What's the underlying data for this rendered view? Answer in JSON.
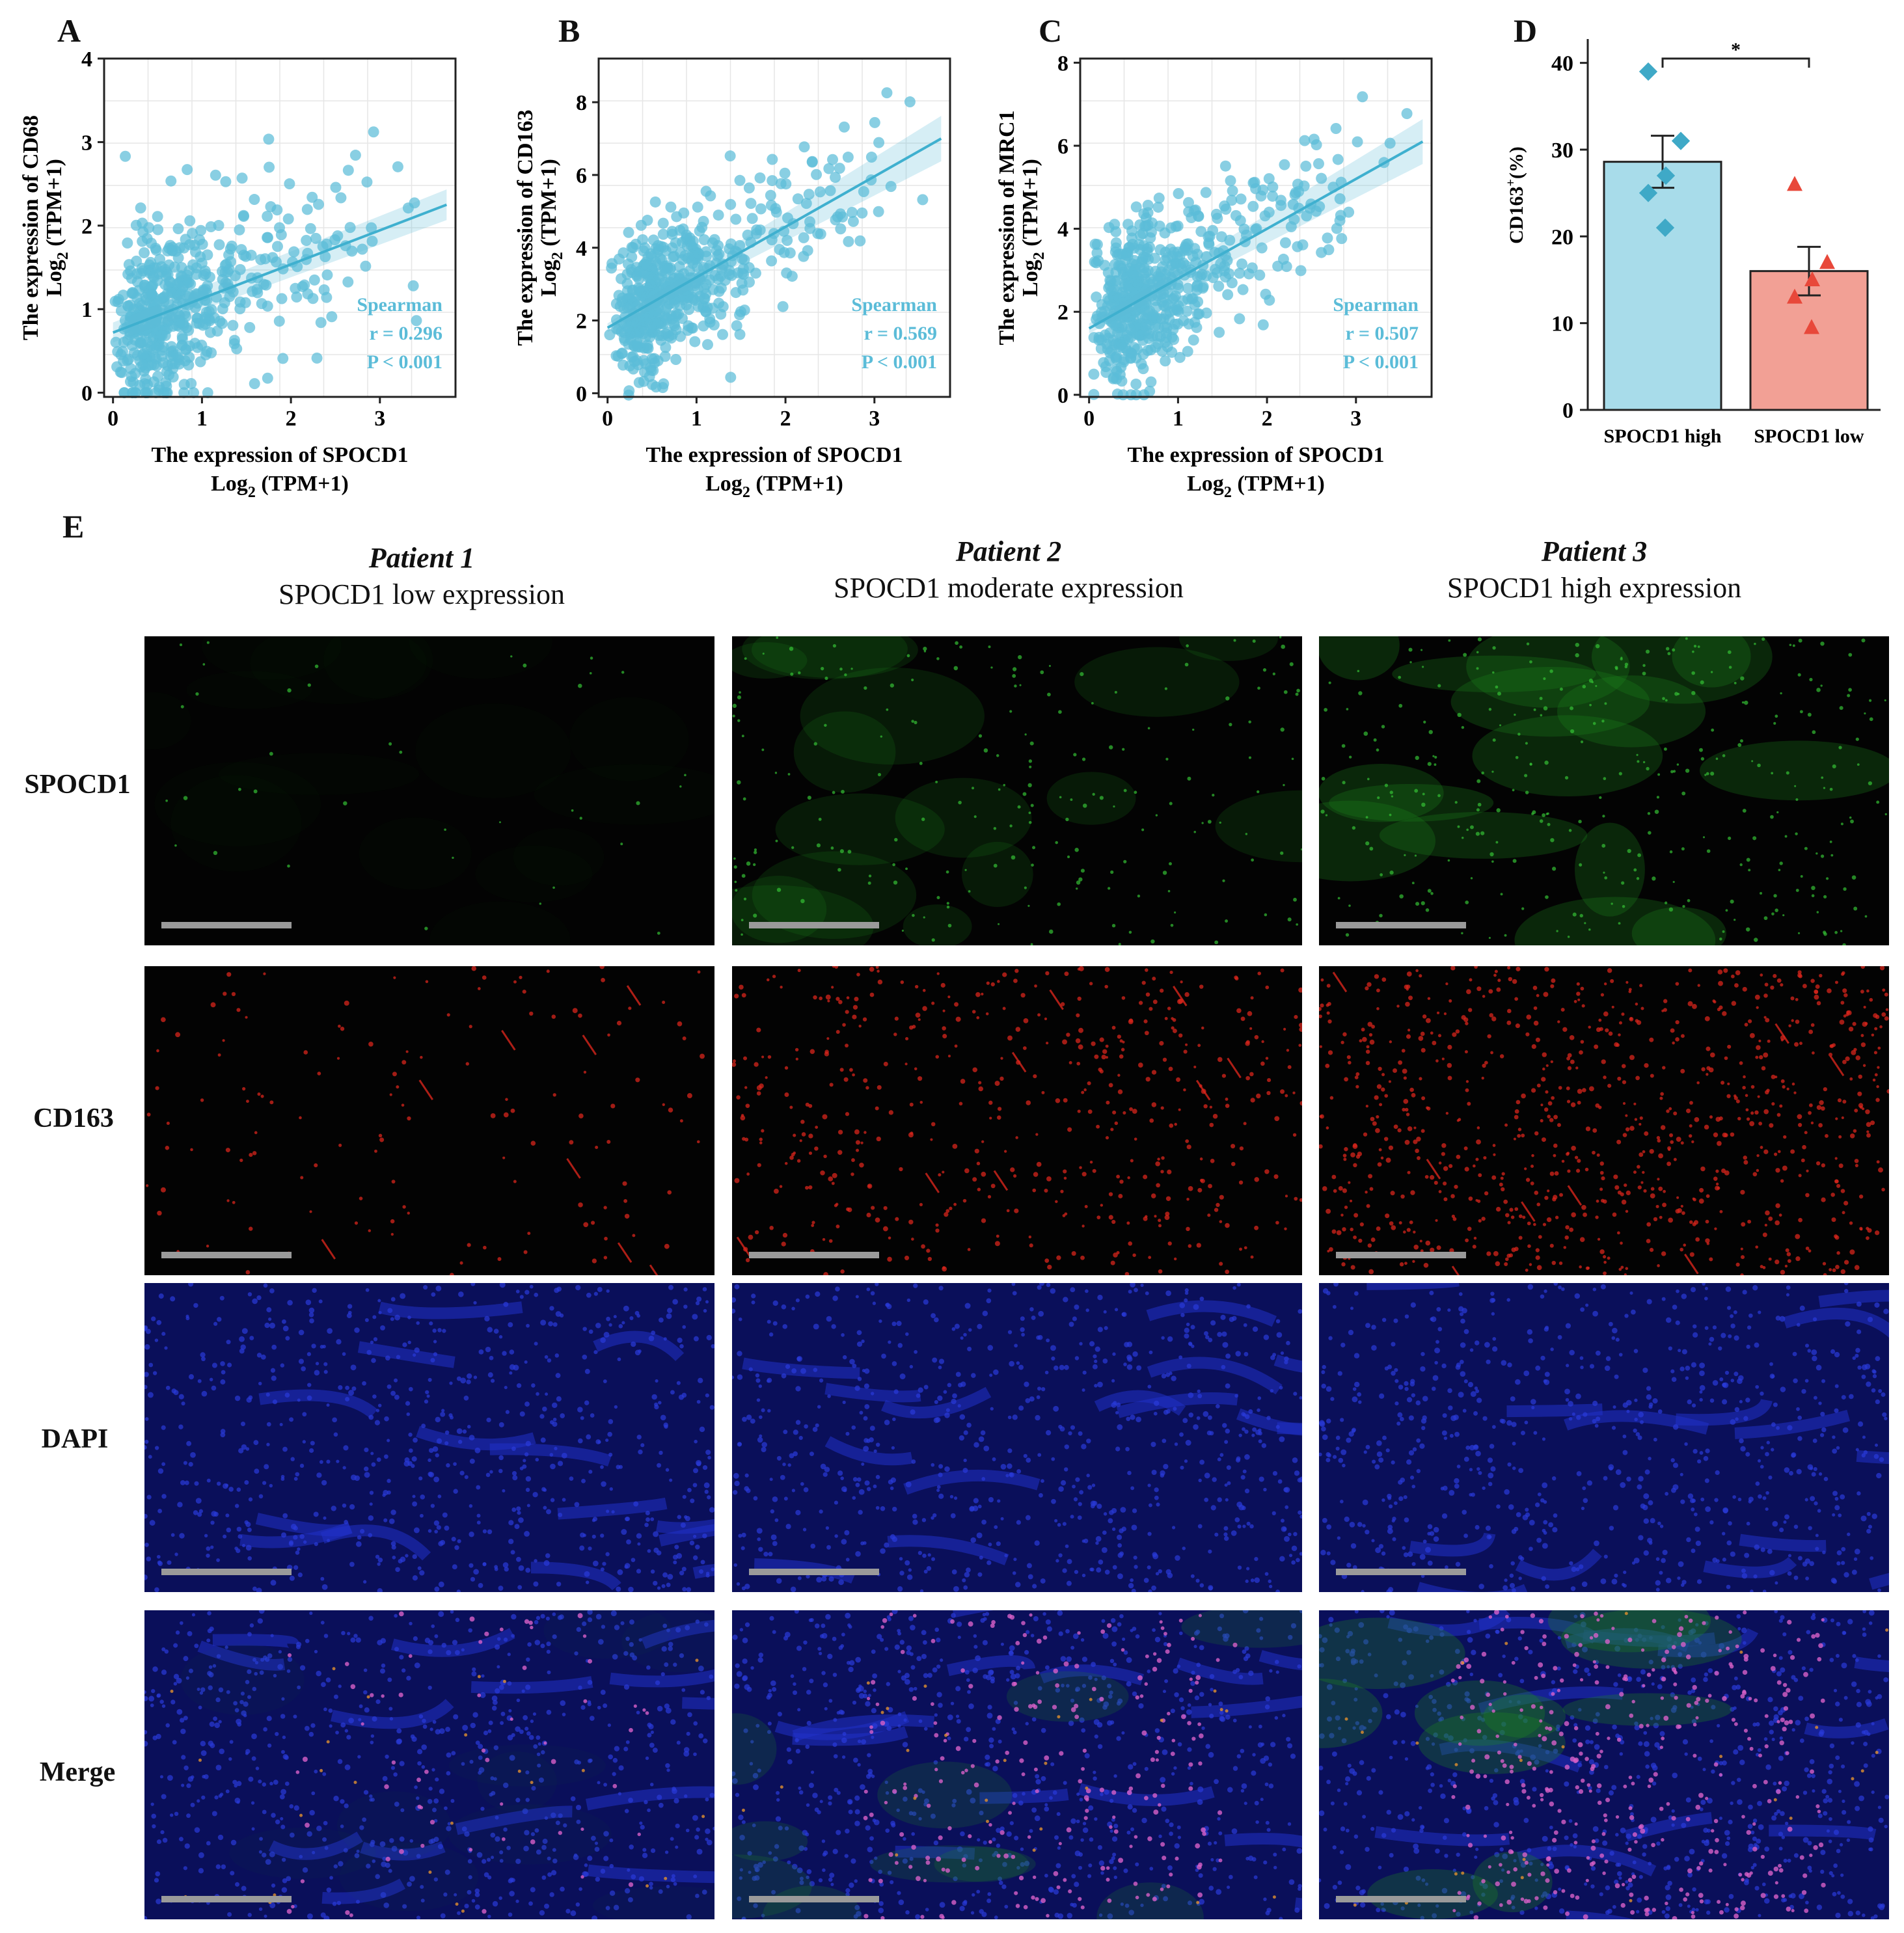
{
  "panels": {
    "a": "A",
    "b": "B",
    "c": "C",
    "d": "D",
    "e": "E"
  },
  "chart_data": [
    {
      "id": "A",
      "type": "scatter",
      "xlabel": "The expression of SPOCD1",
      "xlabel_sub": "Log",
      "xlabel_unit": "2",
      "xlabel_tail": "(TPM+1)",
      "ylabel": "The expression of CD68",
      "ylabel_sub": "Log",
      "ylabel_unit": "2",
      "ylabel_tail": "(TPM+1)",
      "xlim": [
        -0.1,
        3.85
      ],
      "ylim": [
        -0.05,
        4.0
      ],
      "xticks": [
        0,
        1,
        2,
        3
      ],
      "yticks": [
        0,
        1,
        2,
        3,
        4
      ],
      "fit": {
        "x0": 0,
        "y0": 0.72,
        "x1": 3.75,
        "y1": 2.25
      },
      "stat_method": "Spearman",
      "stat_r": "r = 0.296",
      "stat_p": "P < 0.001",
      "seed": 11,
      "npoints": 520,
      "slope": 0.41,
      "intercept": 0.72,
      "noise": 0.55,
      "color": "#5bbcd8"
    },
    {
      "id": "B",
      "type": "scatter",
      "xlabel": "The expression of SPOCD1",
      "xlabel_sub": "Log",
      "xlabel_unit": "2",
      "xlabel_tail": "(TPM+1)",
      "ylabel": "The expression of CD163",
      "ylabel_sub": "Log",
      "ylabel_unit": "2",
      "ylabel_tail": "(TPM+1)",
      "xlim": [
        -0.1,
        3.85
      ],
      "ylim": [
        -0.1,
        9.2
      ],
      "xticks": [
        0,
        1,
        2,
        3
      ],
      "yticks": [
        0,
        2,
        4,
        6,
        8
      ],
      "fit": {
        "x0": 0,
        "y0": 1.8,
        "x1": 3.75,
        "y1": 7.0
      },
      "stat_method": "Spearman",
      "stat_r": "r = 0.569",
      "stat_p": "P < 0.001",
      "seed": 23,
      "npoints": 560,
      "slope": 1.38,
      "intercept": 1.8,
      "noise": 0.9,
      "color": "#5bbcd8"
    },
    {
      "id": "C",
      "type": "scatter",
      "xlabel": "The expression of SPOCD1",
      "xlabel_sub": "Log",
      "xlabel_unit": "2",
      "xlabel_tail": "(TPM+1)",
      "ylabel": "The expression of MRC1",
      "ylabel_sub": "Log",
      "ylabel_unit": "2",
      "ylabel_tail": "(TPM+1)",
      "xlim": [
        -0.1,
        3.85
      ],
      "ylim": [
        -0.05,
        8.1
      ],
      "xticks": [
        0,
        1,
        2,
        3
      ],
      "yticks": [
        0,
        2,
        4,
        6,
        8
      ],
      "fit": {
        "x0": 0,
        "y0": 1.6,
        "x1": 3.75,
        "y1": 6.1
      },
      "stat_method": "Spearman",
      "stat_r": "r = 0.507",
      "stat_p": "P < 0.001",
      "seed": 37,
      "npoints": 560,
      "slope": 1.2,
      "intercept": 1.6,
      "noise": 0.95,
      "color": "#5bbcd8"
    },
    {
      "id": "D",
      "type": "bar",
      "ylabel": "CD163",
      "ylabel_sup": "+",
      "ylabel_tail": "(%)",
      "ylim": [
        0,
        42
      ],
      "yticks": [
        0,
        10,
        20,
        30,
        40
      ],
      "categories": [
        "SPOCD1 high",
        "SPOCD1 low"
      ],
      "values": [
        28.6,
        16.0
      ],
      "sem": [
        3.0,
        2.8
      ],
      "points": [
        [
          39.0,
          31.0,
          27.0,
          25.0,
          21.0
        ],
        [
          26.0,
          17.0,
          15.0,
          13.0,
          9.5
        ]
      ],
      "bar_colors": [
        "#a8dcea",
        "#f2a095"
      ],
      "point_colors": [
        "#3fa9c7",
        "#e8483a"
      ],
      "significance": "*"
    }
  ],
  "micrograph": {
    "patients": [
      {
        "name": "Patient 1",
        "desc": "SPOCD1 low expression"
      },
      {
        "name": "Patient 2",
        "desc": "SPOCD1 moderate expression"
      },
      {
        "name": "Patient 3",
        "desc": "SPOCD1 high expression"
      }
    ],
    "rows": [
      "SPOCD1",
      "CD163",
      "DAPI",
      "Merge"
    ],
    "colors": {
      "spocd1": "#1f8a1f",
      "cd163": "#d8261c",
      "dapi": "#2a3ad8",
      "merge_pink": "#d860c8",
      "merge_orange": "#e09030"
    },
    "intensity": [
      [
        0.1,
        0.15,
        1.0,
        1.0
      ],
      [
        0.55,
        0.55,
        1.0,
        1.0
      ],
      [
        0.85,
        0.95,
        1.0,
        1.0
      ]
    ]
  }
}
